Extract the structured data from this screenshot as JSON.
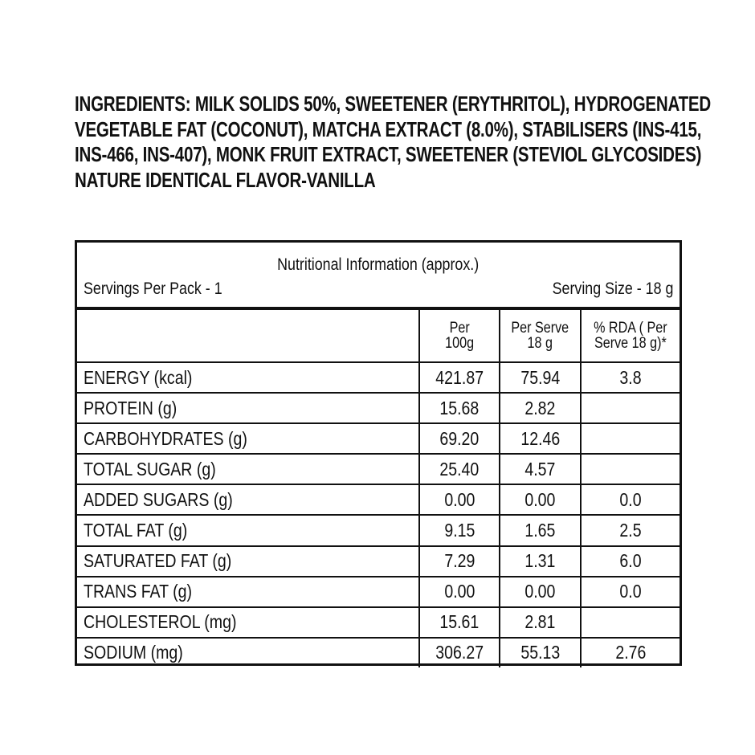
{
  "ingredients": {
    "lines": [
      "INGREDIENTS: MILK SOLIDS 50%, SWEETENER (ERYTHRITOL), HYDROGENATED",
      "VEGETABLE FAT (COCONUT), MATCHA EXTRACT (8.0%), STABILISERS (INS-415,",
      "INS-466, INS-407), MONK FRUIT EXTRACT, SWEETENER (STEVIOL GLYCOSIDES)",
      "NATURE IDENTICAL FLAVOR-VANILLA"
    ]
  },
  "table": {
    "title": "Nutritional Information (approx.)",
    "servings_per_pack": "Servings Per Pack - 1",
    "serving_size": "Serving Size - 18 g",
    "columns": [
      "",
      "Per 100g",
      "Per Serve 18 g",
      "% RDA ( Per Serve 18 g)*"
    ],
    "column_lines": [
      [
        "Per",
        "100g"
      ],
      [
        "Per Serve",
        "18 g"
      ],
      [
        "% RDA ( Per",
        "Serve 18 g)*"
      ]
    ],
    "rows": [
      {
        "name": "ENERGY (kcal)",
        "per100": "421.87",
        "serve": "75.94",
        "rda": "3.8"
      },
      {
        "name": "PROTEIN (g)",
        "per100": "15.68",
        "serve": "2.82",
        "rda": ""
      },
      {
        "name": "CARBOHYDRATES (g)",
        "per100": "69.20",
        "serve": "12.46",
        "rda": ""
      },
      {
        "name": "TOTAL SUGAR (g)",
        "per100": "25.40",
        "serve": "4.57",
        "rda": ""
      },
      {
        "name": "ADDED SUGARS (g)",
        "per100": "0.00",
        "serve": "0.00",
        "rda": "0.0"
      },
      {
        "name": "TOTAL FAT (g)",
        "per100": "9.15",
        "serve": "1.65",
        "rda": "2.5"
      },
      {
        "name": "SATURATED FAT (g)",
        "per100": "7.29",
        "serve": "1.31",
        "rda": "6.0"
      },
      {
        "name": "TRANS FAT (g)",
        "per100": "0.00",
        "serve": "0.00",
        "rda": "0.0"
      },
      {
        "name": "CHOLESTEROL (mg)",
        "per100": "15.61",
        "serve": "2.81",
        "rda": ""
      },
      {
        "name": "SODIUM (mg)",
        "per100": "306.27",
        "serve": "55.13",
        "rda": "2.76"
      }
    ]
  }
}
